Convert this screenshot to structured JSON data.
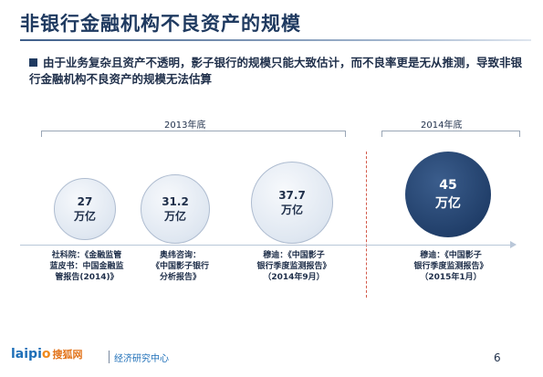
{
  "title": "非银行金融机构不良资产的规模",
  "bullet": "由于业务复杂且资产不透明，影子银行的规模只能大致估计，而不良率更是无从推测，导致非银行金融机构不良资产的规模无法估算",
  "periods": [
    {
      "label": "2013年底"
    },
    {
      "label": "2014年底"
    }
  ],
  "items": [
    {
      "value": "27",
      "unit": "万亿",
      "source": [
        "社科院：《金融监管",
        "蓝皮书：中国金融监",
        "管报告(2014)》"
      ]
    },
    {
      "value": "31.2",
      "unit": "万亿",
      "source": [
        "奥纬咨询：",
        "《中国影子银行",
        "分析报告》"
      ]
    },
    {
      "value": "37.7",
      "unit": "万亿",
      "source": [
        "穆迪：《中国影子",
        "银行季度监测报告》",
        "（2014年9月）"
      ]
    },
    {
      "value": "45",
      "unit": "万亿",
      "source": [
        "穆迪：《中国影子",
        "银行季度监测报告》",
        "（2015年1月）"
      ]
    }
  ],
  "footer": {
    "logo_part1": "laipi",
    "logo_o": "o",
    "logo_brand": "搜狐网",
    "center": "经济研究中心"
  },
  "page_number": "6",
  "colors": {
    "title": "#1f3a60",
    "circle_light": "#dfe7f1",
    "circle_dark": "#213f6a",
    "divider": "#d35a4a"
  }
}
